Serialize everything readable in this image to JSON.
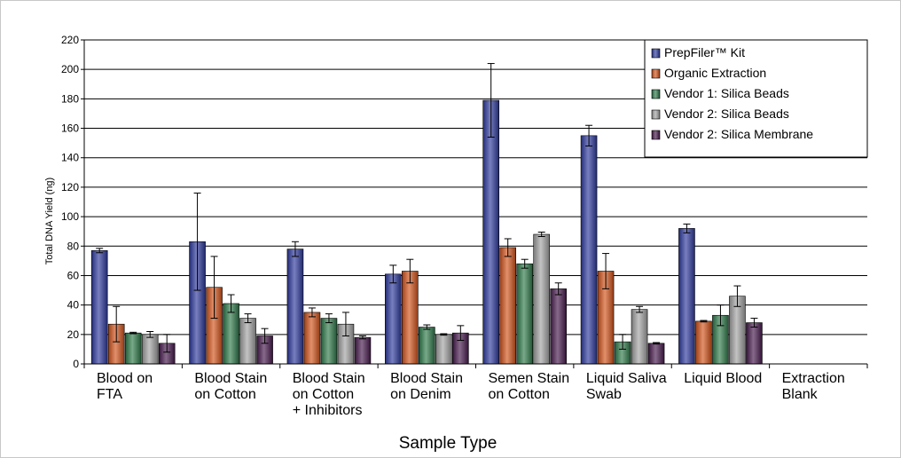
{
  "chart_data": {
    "type": "bar",
    "title": "",
    "xlabel": "Sample Type",
    "ylabel": "Total DNA Yield (ng)",
    "ylim": [
      0,
      220
    ],
    "yticks": [
      0,
      20,
      40,
      60,
      80,
      100,
      120,
      140,
      160,
      180,
      200,
      220
    ],
    "grid": true,
    "legend_position": "top-right",
    "categories": [
      [
        "Blood on",
        "FTA"
      ],
      [
        "Blood Stain",
        "on Cotton"
      ],
      [
        "Blood Stain",
        "on Cotton",
        "+ Inhibitors"
      ],
      [
        "Blood Stain",
        "on Denim"
      ],
      [
        "Semen Stain",
        "on Cotton"
      ],
      [
        "Liquid Saliva",
        "Swab"
      ],
      [
        "Liquid Blood"
      ],
      [
        "Extraction",
        "Blank"
      ]
    ],
    "series": [
      {
        "name": "PrepFiler™ Kit",
        "color": "#2f3a9e",
        "values": [
          77,
          83,
          78,
          61,
          179,
          155,
          92,
          0
        ],
        "errors": [
          1.5,
          33,
          5,
          6,
          25,
          7,
          3,
          0
        ]
      },
      {
        "name": "Organic Extraction",
        "color": "#d2541c",
        "values": [
          27,
          52,
          35,
          63,
          79,
          63,
          29,
          0
        ],
        "errors": [
          12,
          21,
          3,
          8,
          6,
          12,
          0.5,
          0
        ]
      },
      {
        "name": "Vendor 1: Silica Beads",
        "color": "#2f7a4a",
        "values": [
          21,
          41,
          31,
          25,
          68,
          15,
          33,
          0
        ],
        "errors": [
          0.5,
          6,
          3,
          1.5,
          3,
          5,
          7,
          0
        ]
      },
      {
        "name": "Vendor 2: Silica Beads",
        "color": "#a3a3a3",
        "values": [
          20,
          31,
          27,
          20,
          88,
          37,
          46,
          0
        ],
        "errors": [
          2,
          3,
          8,
          0.5,
          1.5,
          2,
          7,
          0
        ]
      },
      {
        "name": "Vendor 2: Silica Membrane",
        "color": "#471a4d",
        "values": [
          14,
          19,
          18,
          21,
          51,
          14,
          28,
          0
        ],
        "errors": [
          6,
          5,
          1,
          5,
          4,
          0.5,
          3,
          0
        ]
      }
    ]
  }
}
